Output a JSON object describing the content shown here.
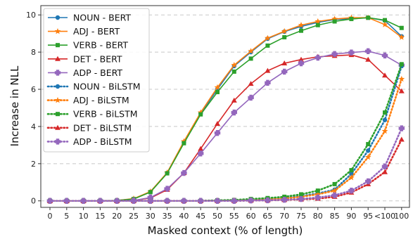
{
  "chart_data": {
    "type": "line",
    "xlabel": "Masked context (% of length)",
    "ylabel": "Increase in NLL",
    "x_ticks": [
      "0",
      "5",
      "10",
      "15",
      "20",
      "25",
      "30",
      "35",
      "40",
      "45",
      "50",
      "55",
      "60",
      "65",
      "70",
      "75",
      "80",
      "85",
      "90",
      "95",
      "<100",
      "100"
    ],
    "y_ticks": [
      0,
      2,
      4,
      6,
      8,
      10
    ],
    "ylim": [
      -0.35,
      10.5
    ],
    "grid": "horizontal dashed",
    "legend_position": "top-left",
    "series": [
      {
        "name": "NOUN - BERT",
        "color": "#1f77b4",
        "marker": "circle",
        "style": "solid",
        "values": [
          0.0,
          0.0,
          0.0,
          0.0,
          0.02,
          0.1,
          0.48,
          1.5,
          3.15,
          4.7,
          6.0,
          7.25,
          8.0,
          8.72,
          9.1,
          9.38,
          9.6,
          9.75,
          9.8,
          9.85,
          9.7,
          8.85
        ]
      },
      {
        "name": "ADJ - BERT",
        "color": "#ff7f0e",
        "marker": "star",
        "style": "solid",
        "values": [
          0.0,
          0.0,
          0.0,
          0.0,
          0.02,
          0.12,
          0.5,
          1.52,
          3.2,
          4.75,
          6.1,
          7.3,
          8.05,
          8.75,
          9.12,
          9.45,
          9.65,
          9.78,
          9.85,
          9.85,
          9.48,
          8.8
        ]
      },
      {
        "name": "VERB - BERT",
        "color": "#2ca02c",
        "marker": "square",
        "style": "solid",
        "values": [
          0.0,
          0.0,
          0.0,
          0.0,
          0.02,
          0.1,
          0.47,
          1.48,
          3.1,
          4.65,
          5.85,
          6.95,
          7.65,
          8.35,
          8.8,
          9.15,
          9.45,
          9.65,
          9.78,
          9.85,
          9.72,
          9.3
        ]
      },
      {
        "name": "DET - BERT",
        "color": "#d62728",
        "marker": "triangle",
        "style": "solid",
        "values": [
          0.0,
          0.0,
          0.0,
          0.0,
          0.0,
          0.02,
          0.15,
          0.6,
          1.5,
          2.8,
          4.15,
          5.4,
          6.3,
          7.0,
          7.4,
          7.6,
          7.75,
          7.8,
          7.85,
          7.6,
          6.75,
          5.9
        ]
      },
      {
        "name": "ADP - BERT",
        "color": "#9467bd",
        "marker": "plus",
        "style": "solid",
        "values": [
          0.0,
          0.0,
          0.0,
          0.0,
          0.0,
          0.02,
          0.18,
          0.65,
          1.5,
          2.55,
          3.65,
          4.75,
          5.55,
          6.35,
          6.95,
          7.4,
          7.7,
          7.9,
          7.98,
          8.05,
          7.82,
          7.3
        ]
      },
      {
        "name": "NOUN - BiLSTM",
        "color": "#1f77b4",
        "marker": "circle",
        "style": "dotted",
        "values": [
          0.0,
          0.0,
          0.0,
          0.0,
          0.0,
          0.0,
          0.0,
          0.0,
          0.0,
          0.0,
          0.02,
          0.03,
          0.06,
          0.1,
          0.15,
          0.25,
          0.4,
          0.6,
          1.45,
          2.7,
          4.35,
          7.25
        ]
      },
      {
        "name": "ADJ - BiLSTM",
        "color": "#ff7f0e",
        "marker": "star",
        "style": "dotted",
        "values": [
          0.0,
          0.0,
          0.0,
          0.0,
          0.0,
          0.0,
          0.0,
          0.0,
          0.0,
          0.0,
          0.02,
          0.03,
          0.05,
          0.08,
          0.12,
          0.22,
          0.35,
          0.55,
          1.25,
          2.35,
          3.75,
          6.55
        ]
      },
      {
        "name": "VERB - BiLSTM",
        "color": "#2ca02c",
        "marker": "square",
        "style": "dotted",
        "values": [
          0.0,
          0.0,
          0.0,
          0.0,
          0.0,
          0.0,
          0.0,
          0.0,
          0.0,
          0.0,
          0.03,
          0.05,
          0.1,
          0.15,
          0.22,
          0.35,
          0.55,
          0.9,
          1.65,
          3.05,
          4.75,
          7.35
        ]
      },
      {
        "name": "DET - BiLSTM",
        "color": "#d62728",
        "marker": "triangle",
        "style": "dotted",
        "values": [
          0.0,
          0.0,
          0.0,
          0.0,
          0.0,
          0.0,
          0.0,
          0.0,
          0.0,
          0.0,
          0.0,
          0.0,
          0.02,
          0.03,
          0.05,
          0.08,
          0.12,
          0.22,
          0.45,
          0.9,
          1.55,
          3.3
        ]
      },
      {
        "name": "ADP - BiLSTM",
        "color": "#9467bd",
        "marker": "plus",
        "style": "dotted",
        "values": [
          0.0,
          0.0,
          0.0,
          0.0,
          0.0,
          0.0,
          0.0,
          0.0,
          0.0,
          0.0,
          0.0,
          0.0,
          0.02,
          0.03,
          0.06,
          0.1,
          0.18,
          0.3,
          0.55,
          1.05,
          1.85,
          3.9
        ]
      }
    ]
  }
}
